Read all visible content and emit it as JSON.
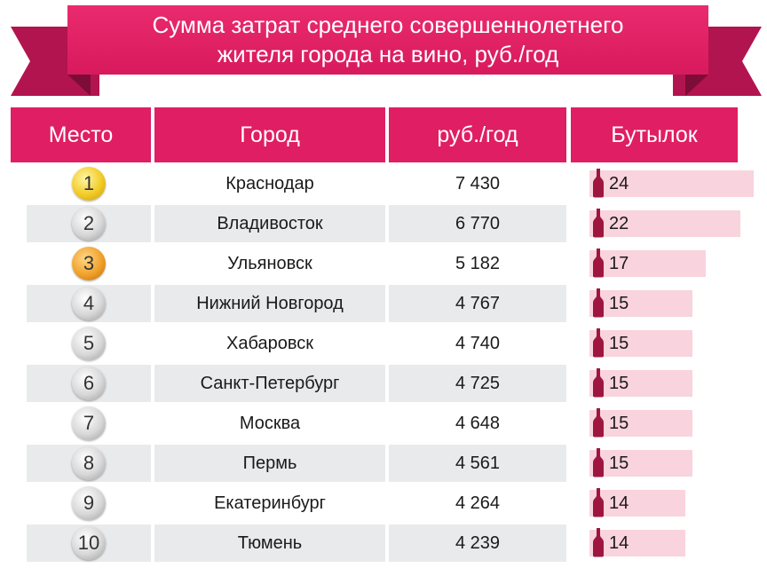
{
  "title": {
    "line1": "Сумма затрат среднего совершеннолетнего",
    "line2": "жителя города на вино, руб./год"
  },
  "headers": {
    "place": "Место",
    "city": "Город",
    "rub": "руб./год",
    "bottles": "Бутылок"
  },
  "colors": {
    "accent": "#e01e63",
    "ribbon_dark": "#b2144f",
    "bar": "#f9d3dd",
    "bottle": "#9e1640",
    "row_alt": "#e9eaeb"
  },
  "chart_data": {
    "type": "table",
    "title": "Сумма затрат среднего совершеннолетнего жителя города на вино, руб./год",
    "columns": [
      "Место",
      "Город",
      "руб./год",
      "Бутылок"
    ],
    "rows": [
      {
        "rank": "1",
        "city": "Краснодар",
        "rub": "7 430",
        "bottles": 24,
        "medal": "gold"
      },
      {
        "rank": "2",
        "city": "Владивосток",
        "rub": "6 770",
        "bottles": 22,
        "medal": "silver"
      },
      {
        "rank": "3",
        "city": "Ульяновск",
        "rub": "5 182",
        "bottles": 17,
        "medal": "bronze"
      },
      {
        "rank": "4",
        "city": "Нижний Новгород",
        "rub": "4 767",
        "bottles": 15,
        "medal": "silver"
      },
      {
        "rank": "5",
        "city": "Хабаровск",
        "rub": "4 740",
        "bottles": 15,
        "medal": "silver"
      },
      {
        "rank": "6",
        "city": "Санкт-Петербург",
        "rub": "4 725",
        "bottles": 15,
        "medal": "silver"
      },
      {
        "rank": "7",
        "city": "Москва",
        "rub": "4 648",
        "bottles": 15,
        "medal": "silver"
      },
      {
        "rank": "8",
        "city": "Пермь",
        "rub": "4 561",
        "bottles": 15,
        "medal": "silver"
      },
      {
        "rank": "9",
        "city": "Екатеринбург",
        "rub": "4 264",
        "bottles": 14,
        "medal": "silver"
      },
      {
        "rank": "10",
        "city": "Тюмень",
        "rub": "4 239",
        "bottles": 14,
        "medal": "silver"
      }
    ],
    "bottles_scale_max": 24
  }
}
